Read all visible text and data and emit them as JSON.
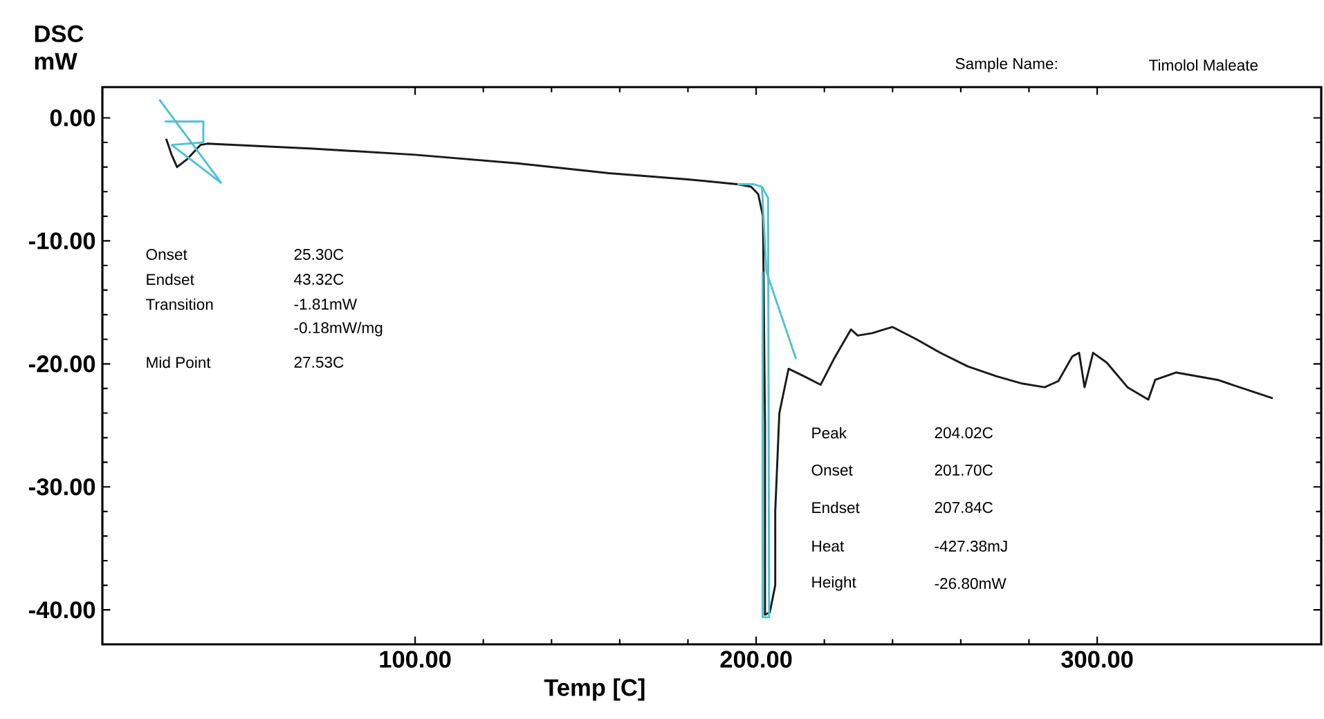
{
  "chart_data": {
    "type": "line",
    "xlabel": "Temp [C]",
    "ylabel": "DSC mW",
    "xlim": [
      8.3,
      365.7
    ],
    "ylim": [
      -42.8,
      2.5
    ],
    "xticks": [
      {
        "value": 100,
        "label": "100.00"
      },
      {
        "value": 200,
        "label": "200.00"
      },
      {
        "value": 300,
        "label": "300.00"
      }
    ],
    "yticks": [
      {
        "value": 0,
        "label": "0.00"
      },
      {
        "value": -10,
        "label": "-10.00"
      },
      {
        "value": -20,
        "label": "-20.00"
      },
      {
        "value": -30,
        "label": "-30.00"
      },
      {
        "value": -40,
        "label": "-40.00"
      }
    ],
    "series": [
      {
        "color": "#1a1a1a",
        "x": [
          27.0,
          28.6,
          30.2,
          33.0,
          37.1,
          39.1,
          70,
          100.0,
          130,
          156.8,
          180,
          194.5,
          198.5,
          200.6,
          202.0,
          202.6,
          202.6,
          204.0,
          205.6,
          205.6,
          206.8,
          209.5,
          214.0,
          218.9,
          223.0,
          227.8,
          229.8,
          234.0,
          240.0,
          247.0,
          254.0,
          262.0,
          270.4,
          278.0,
          284.6,
          288.6,
          292.7,
          294.7,
          296.3,
          298.8,
          302.8,
          308.9,
          315.0,
          317.0,
          323.1,
          335.3,
          351.5
        ],
        "values": [
          -1.7,
          -3.0,
          -4.0,
          -3.4,
          -2.2,
          -2.1,
          -2.5,
          -3.0,
          -3.7,
          -4.5,
          -5.0,
          -5.4,
          -5.6,
          -6.2,
          -8.0,
          -25.0,
          -40.4,
          -40.2,
          -38.0,
          -32.0,
          -24.0,
          -20.4,
          -21.0,
          -21.7,
          -19.5,
          -17.2,
          -17.7,
          -17.5,
          -17.0,
          -18.0,
          -19.1,
          -20.2,
          -21.0,
          -21.6,
          -21.9,
          -21.4,
          -19.4,
          -19.1,
          -21.9,
          -19.1,
          -19.9,
          -21.9,
          -22.9,
          -21.3,
          -20.7,
          -21.3,
          -22.8
        ]
      },
      {
        "color": "#4fc1d0",
        "x": [
          25.0,
          43.2
        ],
        "values": [
          1.5,
          -5.3
        ]
      },
      {
        "color": "#4fc1d0",
        "x": [
          26.6,
          37.9,
          37.9,
          28.6,
          43.2
        ],
        "values": [
          -0.3,
          -0.3,
          -2.0,
          -2.2,
          -5.3
        ]
      },
      {
        "color": "#4fc1d0",
        "x": [
          194.5,
          199.3,
          201.7,
          203.0,
          211.7
        ],
        "values": [
          -5.4,
          -5.4,
          -5.6,
          -12.5,
          -19.6
        ]
      },
      {
        "color": "#4fc1d0",
        "x": [
          201.7,
          203.5,
          203.8,
          201.9,
          201.9
        ],
        "values": [
          -5.6,
          -6.5,
          -40.6,
          -40.6,
          -12.5
        ]
      }
    ],
    "annotations": [
      "Onset",
      "25.30C",
      "Endset",
      "43.32C",
      "Transition",
      "-1.81mW",
      "-0.18mW/mg",
      "Mid Point",
      "27.53C",
      "Peak",
      "204.02C",
      "Onset",
      "201.70C",
      "Endset",
      "207.84C",
      "Heat",
      "-427.38mJ",
      "Height",
      "-26.80mW",
      "Sample Name:",
      "Timolol Maleate"
    ]
  }
}
